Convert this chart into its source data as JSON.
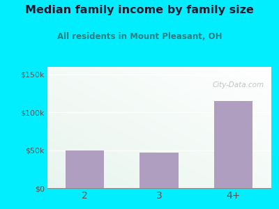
{
  "title": "Median family income by family size",
  "subtitle": "All residents in Mount Pleasant, OH",
  "categories": [
    "2",
    "3",
    "4+"
  ],
  "values": [
    50000,
    47000,
    115000
  ],
  "bar_color": "#b09ec0",
  "outer_bg": "#00eeff",
  "title_color": "#1a1a2e",
  "subtitle_color": "#2a8080",
  "axis_color": "#555555",
  "yticks": [
    0,
    50000,
    100000,
    150000
  ],
  "ytick_labels": [
    "$0",
    "$50k",
    "$100k",
    "$150k"
  ],
  "ylim": [
    0,
    160000
  ],
  "watermark": "City-Data.com",
  "plot_bg_colors": [
    "#e8f5ee",
    "#f5faf8",
    "#ffffff"
  ]
}
